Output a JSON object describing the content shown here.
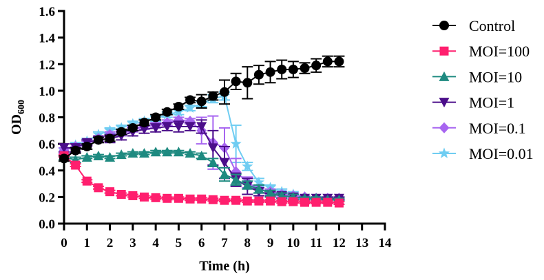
{
  "chart_data": {
    "type": "line",
    "title": "",
    "xlabel": "Time (h)",
    "ylabel": "OD",
    "ylabel_subscript": "600",
    "xlim": [
      0,
      14
    ],
    "ylim": [
      0,
      1.6
    ],
    "xticks": [
      0,
      1,
      2,
      3,
      4,
      5,
      6,
      7,
      8,
      9,
      10,
      11,
      12,
      13,
      14
    ],
    "xtick_labels": [
      "0",
      "1",
      "2",
      "3",
      "4",
      "5",
      "6",
      "7",
      "8",
      "9",
      "10",
      "11",
      "12",
      "13",
      "14"
    ],
    "yticks": [
      0,
      0.2,
      0.4,
      0.6,
      0.8,
      1.0,
      1.2,
      1.4,
      1.6
    ],
    "ytick_labels": [
      "0.0",
      "0.2",
      "0.4",
      "0.6",
      "0.8",
      "1.0",
      "1.2",
      "1.4",
      "1.6"
    ],
    "grid": false,
    "legend_position": "right",
    "x": [
      0,
      0.5,
      1,
      1.5,
      2,
      2.5,
      3,
      3.5,
      4,
      4.5,
      5,
      5.5,
      6,
      6.5,
      7,
      7.5,
      8,
      8.5,
      9,
      9.5,
      10,
      10.5,
      11,
      11.5,
      12
    ],
    "series": [
      {
        "name": "Control",
        "color": "#000000",
        "marker": "circle",
        "values": [
          0.49,
          0.55,
          0.58,
          0.63,
          0.64,
          0.69,
          0.72,
          0.76,
          0.8,
          0.84,
          0.88,
          0.93,
          0.92,
          0.96,
          0.99,
          1.07,
          1.06,
          1.12,
          1.14,
          1.16,
          1.16,
          1.17,
          1.19,
          1.22,
          1.22
        ],
        "errors": [
          0.02,
          0.02,
          0.02,
          0.02,
          0.02,
          0.02,
          0.02,
          0.02,
          0.02,
          0.02,
          0.02,
          0.02,
          0.05,
          0.03,
          0.09,
          0.06,
          0.12,
          0.07,
          0.08,
          0.07,
          0.06,
          0.04,
          0.05,
          0.04,
          0.04
        ]
      },
      {
        "name": "MOI=100",
        "color": "#FF1F6E",
        "marker": "square",
        "values": [
          0.51,
          0.44,
          0.32,
          0.27,
          0.24,
          0.22,
          0.21,
          0.2,
          0.195,
          0.19,
          0.19,
          0.185,
          0.185,
          0.18,
          0.175,
          0.175,
          0.17,
          0.17,
          0.17,
          0.165,
          0.165,
          0.16,
          0.16,
          0.16,
          0.155
        ],
        "errors": [
          0.01,
          0.01,
          0.01,
          0.01,
          0.01,
          0.01,
          0.01,
          0.01,
          0.01,
          0.01,
          0.01,
          0.01,
          0.01,
          0.01,
          0.01,
          0.01,
          0.01,
          0.01,
          0.01,
          0.01,
          0.01,
          0.01,
          0.01,
          0.01,
          0.01
        ]
      },
      {
        "name": "MOI=10",
        "color": "#1E8A80",
        "marker": "triangle-up",
        "values": [
          0.5,
          0.48,
          0.5,
          0.51,
          0.5,
          0.52,
          0.53,
          0.53,
          0.54,
          0.54,
          0.54,
          0.53,
          0.51,
          0.46,
          0.37,
          0.33,
          0.29,
          0.26,
          0.23,
          0.21,
          0.2,
          0.19,
          0.19,
          0.18,
          0.18
        ],
        "errors": [
          0.02,
          0.02,
          0.01,
          0.01,
          0.01,
          0.01,
          0.01,
          0.01,
          0.01,
          0.01,
          0.01,
          0.01,
          0.02,
          0.03,
          0.05,
          0.04,
          0.03,
          0.03,
          0.02,
          0.02,
          0.02,
          0.01,
          0.01,
          0.01,
          0.01
        ]
      },
      {
        "name": "MOI=1",
        "color": "#4B0E8A",
        "marker": "triangle-down",
        "values": [
          0.57,
          0.57,
          0.61,
          0.63,
          0.64,
          0.66,
          0.69,
          0.71,
          0.72,
          0.73,
          0.73,
          0.73,
          0.73,
          0.57,
          0.46,
          0.33,
          0.28,
          0.24,
          0.22,
          0.21,
          0.2,
          0.19,
          0.19,
          0.19,
          0.19
        ],
        "errors": [
          0.03,
          0.03,
          0.02,
          0.02,
          0.03,
          0.03,
          0.03,
          0.03,
          0.03,
          0.03,
          0.04,
          0.03,
          0.05,
          0.13,
          0.12,
          0.05,
          0.06,
          0.03,
          0.02,
          0.02,
          0.02,
          0.01,
          0.01,
          0.01,
          0.01
        ]
      },
      {
        "name": "MOI=0.1",
        "color": "#A765F0",
        "marker": "diamond",
        "values": [
          0.55,
          0.58,
          0.6,
          0.64,
          0.67,
          0.68,
          0.71,
          0.73,
          0.74,
          0.76,
          0.78,
          0.77,
          0.7,
          0.61,
          0.57,
          0.39,
          0.31,
          0.26,
          0.24,
          0.22,
          0.21,
          0.2,
          0.19,
          0.19,
          0.19
        ],
        "errors": [
          0.02,
          0.02,
          0.02,
          0.02,
          0.02,
          0.02,
          0.02,
          0.02,
          0.02,
          0.02,
          0.02,
          0.02,
          0.1,
          0.2,
          0.15,
          0.1,
          0.04,
          0.03,
          0.02,
          0.02,
          0.02,
          0.01,
          0.01,
          0.01,
          0.01
        ]
      },
      {
        "name": "MOI=0.01",
        "color": "#6FCDF2",
        "marker": "star",
        "values": [
          0.55,
          0.59,
          0.62,
          0.67,
          0.7,
          0.72,
          0.75,
          0.77,
          0.79,
          0.82,
          0.84,
          0.87,
          0.9,
          0.94,
          0.96,
          0.6,
          0.43,
          0.31,
          0.27,
          0.24,
          0.22,
          0.2,
          0.19,
          0.18,
          0.18
        ],
        "errors": [
          0.02,
          0.02,
          0.02,
          0.02,
          0.02,
          0.02,
          0.02,
          0.02,
          0.02,
          0.02,
          0.02,
          0.02,
          0.02,
          0.03,
          0.03,
          0.14,
          0.03,
          0.03,
          0.02,
          0.02,
          0.02,
          0.01,
          0.01,
          0.01,
          0.01
        ]
      }
    ]
  }
}
